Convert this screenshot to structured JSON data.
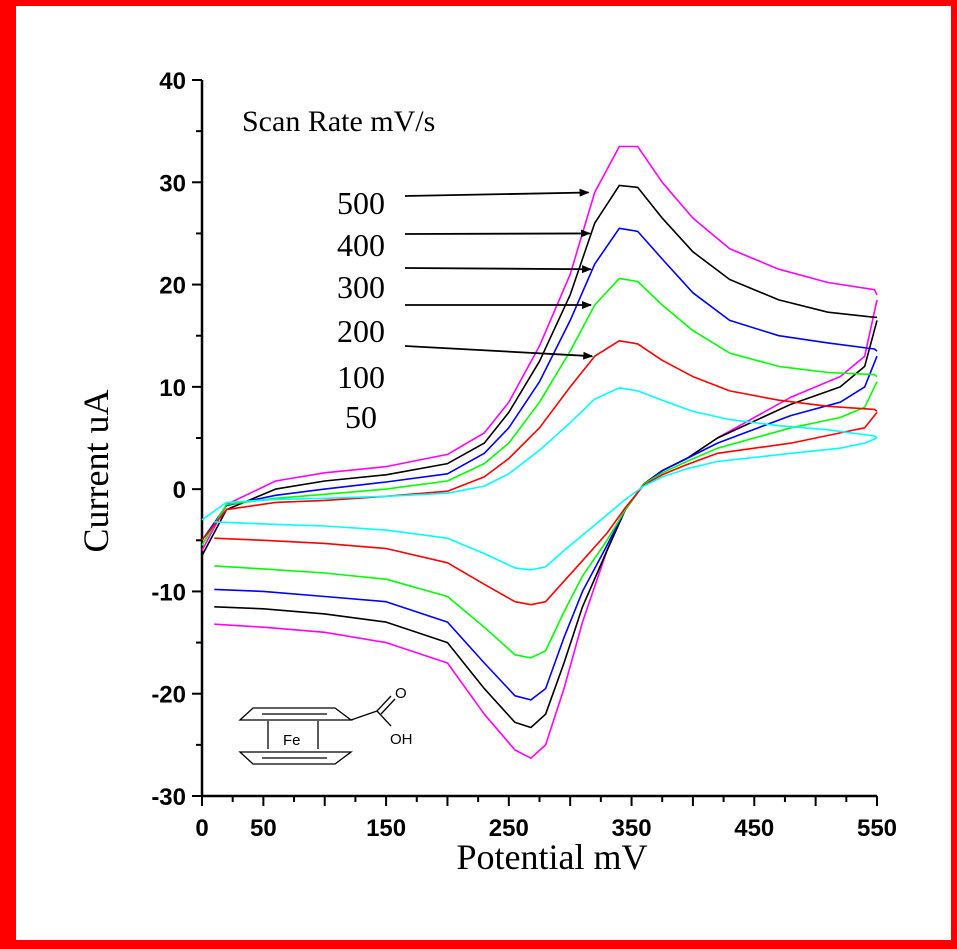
{
  "chart_data": {
    "type": "line",
    "title": "",
    "xlabel": "Potential mV",
    "ylabel": "Current uA",
    "xlim": [
      0,
      550
    ],
    "ylim": [
      -30,
      40
    ],
    "x_ticks": [
      0,
      50,
      150,
      250,
      350,
      450,
      550
    ],
    "y_ticks": [
      -30,
      -20,
      -10,
      0,
      10,
      20,
      30,
      40
    ],
    "grid": false,
    "legend_title": "Scan Rate mV/s",
    "series": [
      {
        "name": "500",
        "color": "#ff00ff",
        "forward": [
          [
            0,
            -6
          ],
          [
            20,
            -1.5
          ],
          [
            60,
            0.8
          ],
          [
            100,
            1.6
          ],
          [
            150,
            2.2
          ],
          [
            200,
            3.4
          ],
          [
            230,
            5.5
          ],
          [
            250,
            8.5
          ],
          [
            275,
            14
          ],
          [
            300,
            21
          ],
          [
            320,
            29
          ],
          [
            340,
            33.5
          ],
          [
            355,
            33.5
          ],
          [
            375,
            30
          ],
          [
            400,
            26.5
          ],
          [
            430,
            23.5
          ],
          [
            470,
            21.5
          ],
          [
            510,
            20.2
          ],
          [
            548,
            19.5
          ],
          [
            550,
            19
          ]
        ],
        "reverse": [
          [
            550,
            18.5
          ],
          [
            540,
            13
          ],
          [
            520,
            11
          ],
          [
            480,
            9
          ],
          [
            420,
            5
          ],
          [
            395,
            3
          ],
          [
            375,
            1.8
          ],
          [
            360,
            0.5
          ],
          [
            345,
            -2
          ],
          [
            330,
            -6
          ],
          [
            310,
            -13
          ],
          [
            295,
            -19.5
          ],
          [
            280,
            -25
          ],
          [
            268,
            -26.3
          ],
          [
            255,
            -25.5
          ],
          [
            230,
            -22
          ],
          [
            200,
            -17
          ],
          [
            150,
            -15
          ],
          [
            100,
            -14
          ],
          [
            50,
            -13.5
          ],
          [
            10,
            -13.2
          ]
        ]
      },
      {
        "name": "400",
        "color": "#000000",
        "forward": [
          [
            0,
            -6.5
          ],
          [
            20,
            -2
          ],
          [
            60,
            0
          ],
          [
            100,
            0.8
          ],
          [
            150,
            1.4
          ],
          [
            200,
            2.5
          ],
          [
            230,
            4.5
          ],
          [
            250,
            7.5
          ],
          [
            275,
            12.5
          ],
          [
            300,
            19
          ],
          [
            320,
            26
          ],
          [
            340,
            29.7
          ],
          [
            355,
            29.5
          ],
          [
            375,
            26.5
          ],
          [
            400,
            23.2
          ],
          [
            430,
            20.5
          ],
          [
            470,
            18.5
          ],
          [
            510,
            17.3
          ],
          [
            548,
            16.8
          ],
          [
            550,
            16.8
          ]
        ],
        "reverse": [
          [
            550,
            16.5
          ],
          [
            540,
            12
          ],
          [
            520,
            10
          ],
          [
            480,
            8.3
          ],
          [
            420,
            5
          ],
          [
            395,
            3
          ],
          [
            375,
            1.8
          ],
          [
            360,
            0.5
          ],
          [
            345,
            -2
          ],
          [
            330,
            -6
          ],
          [
            310,
            -11.5
          ],
          [
            295,
            -17
          ],
          [
            280,
            -22
          ],
          [
            268,
            -23.3
          ],
          [
            255,
            -22.8
          ],
          [
            230,
            -19.5
          ],
          [
            200,
            -15
          ],
          [
            150,
            -13
          ],
          [
            100,
            -12.2
          ],
          [
            50,
            -11.7
          ],
          [
            10,
            -11.5
          ]
        ]
      },
      {
        "name": "300",
        "color": "#0000ff",
        "forward": [
          [
            0,
            -5
          ],
          [
            20,
            -1.6
          ],
          [
            60,
            -0.6
          ],
          [
            100,
            0
          ],
          [
            150,
            0.7
          ],
          [
            200,
            1.5
          ],
          [
            230,
            3.5
          ],
          [
            250,
            6
          ],
          [
            275,
            10.5
          ],
          [
            300,
            16.5
          ],
          [
            320,
            22
          ],
          [
            340,
            25.5
          ],
          [
            355,
            25.2
          ],
          [
            375,
            22.5
          ],
          [
            400,
            19.2
          ],
          [
            430,
            16.5
          ],
          [
            470,
            15
          ],
          [
            510,
            14.3
          ],
          [
            548,
            13.7
          ],
          [
            550,
            13.5
          ]
        ],
        "reverse": [
          [
            550,
            13
          ],
          [
            540,
            10
          ],
          [
            520,
            8.5
          ],
          [
            480,
            7.2
          ],
          [
            420,
            4.5
          ],
          [
            395,
            3
          ],
          [
            375,
            1.8
          ],
          [
            360,
            0.5
          ],
          [
            345,
            -2
          ],
          [
            330,
            -5.5
          ],
          [
            310,
            -10
          ],
          [
            295,
            -14.5
          ],
          [
            280,
            -19.5
          ],
          [
            268,
            -20.6
          ],
          [
            255,
            -20.2
          ],
          [
            230,
            -17
          ],
          [
            200,
            -13
          ],
          [
            150,
            -11
          ],
          [
            100,
            -10.5
          ],
          [
            50,
            -10
          ],
          [
            10,
            -9.8
          ]
        ]
      },
      {
        "name": "200",
        "color": "#00ff00",
        "forward": [
          [
            0,
            -5.5
          ],
          [
            20,
            -1.5
          ],
          [
            60,
            -0.9
          ],
          [
            100,
            -0.5
          ],
          [
            150,
            0
          ],
          [
            200,
            0.8
          ],
          [
            230,
            2.5
          ],
          [
            250,
            4.5
          ],
          [
            275,
            8.5
          ],
          [
            300,
            13.5
          ],
          [
            320,
            18
          ],
          [
            340,
            20.6
          ],
          [
            355,
            20.3
          ],
          [
            375,
            18
          ],
          [
            400,
            15.5
          ],
          [
            430,
            13.3
          ],
          [
            470,
            12
          ],
          [
            510,
            11.4
          ],
          [
            548,
            11.2
          ],
          [
            550,
            11
          ]
        ],
        "reverse": [
          [
            550,
            10.5
          ],
          [
            540,
            8
          ],
          [
            520,
            7
          ],
          [
            480,
            6
          ],
          [
            420,
            4
          ],
          [
            395,
            2.7
          ],
          [
            375,
            1.6
          ],
          [
            360,
            0.5
          ],
          [
            345,
            -2
          ],
          [
            330,
            -5
          ],
          [
            310,
            -8.5
          ],
          [
            295,
            -12
          ],
          [
            280,
            -15.8
          ],
          [
            268,
            -16.5
          ],
          [
            255,
            -16.2
          ],
          [
            230,
            -13.5
          ],
          [
            200,
            -10.5
          ],
          [
            150,
            -8.8
          ],
          [
            100,
            -8.2
          ],
          [
            50,
            -7.8
          ],
          [
            10,
            -7.5
          ]
        ]
      },
      {
        "name": "100",
        "color": "#ff0000",
        "forward": [
          [
            0,
            -5
          ],
          [
            20,
            -2
          ],
          [
            60,
            -1.3
          ],
          [
            100,
            -1.1
          ],
          [
            150,
            -0.7
          ],
          [
            200,
            -0.2
          ],
          [
            230,
            1.2
          ],
          [
            250,
            3
          ],
          [
            275,
            6
          ],
          [
            300,
            10
          ],
          [
            320,
            13
          ],
          [
            340,
            14.5
          ],
          [
            355,
            14.2
          ],
          [
            375,
            12.6
          ],
          [
            400,
            11
          ],
          [
            430,
            9.6
          ],
          [
            470,
            8.7
          ],
          [
            510,
            8.1
          ],
          [
            548,
            7.8
          ],
          [
            550,
            7.6
          ]
        ],
        "reverse": [
          [
            550,
            7.5
          ],
          [
            540,
            6
          ],
          [
            520,
            5.5
          ],
          [
            480,
            4.5
          ],
          [
            420,
            3.5
          ],
          [
            395,
            2.4
          ],
          [
            375,
            1.4
          ],
          [
            360,
            0.4
          ],
          [
            345,
            -1.8
          ],
          [
            330,
            -4.3
          ],
          [
            310,
            -7
          ],
          [
            295,
            -9
          ],
          [
            280,
            -11
          ],
          [
            268,
            -11.3
          ],
          [
            255,
            -11
          ],
          [
            230,
            -9.3
          ],
          [
            200,
            -7.2
          ],
          [
            150,
            -5.8
          ],
          [
            100,
            -5.3
          ],
          [
            50,
            -5
          ],
          [
            10,
            -4.8
          ]
        ]
      },
      {
        "name": "50",
        "color": "#00ffff",
        "forward": [
          [
            0,
            -3
          ],
          [
            20,
            -1.3
          ],
          [
            60,
            -1
          ],
          [
            100,
            -0.9
          ],
          [
            150,
            -0.7
          ],
          [
            200,
            -0.4
          ],
          [
            230,
            0.3
          ],
          [
            250,
            1.5
          ],
          [
            275,
            3.8
          ],
          [
            300,
            6.5
          ],
          [
            320,
            8.8
          ],
          [
            340,
            9.9
          ],
          [
            355,
            9.6
          ],
          [
            375,
            8.7
          ],
          [
            400,
            7.6
          ],
          [
            430,
            6.8
          ],
          [
            470,
            6.2
          ],
          [
            510,
            5.8
          ],
          [
            548,
            5.2
          ],
          [
            550,
            5
          ]
        ],
        "reverse": [
          [
            550,
            5
          ],
          [
            540,
            4.5
          ],
          [
            520,
            4
          ],
          [
            480,
            3.5
          ],
          [
            420,
            2.7
          ],
          [
            395,
            2
          ],
          [
            375,
            1.2
          ],
          [
            360,
            0.3
          ],
          [
            345,
            -1
          ],
          [
            330,
            -2.5
          ],
          [
            310,
            -4.5
          ],
          [
            295,
            -6
          ],
          [
            280,
            -7.6
          ],
          [
            268,
            -7.9
          ],
          [
            255,
            -7.7
          ],
          [
            230,
            -6.3
          ],
          [
            200,
            -4.8
          ],
          [
            150,
            -4
          ],
          [
            100,
            -3.6
          ],
          [
            50,
            -3.4
          ],
          [
            10,
            -3.2
          ]
        ]
      }
    ],
    "annotations": [
      {
        "label": "500",
        "x": 315,
        "y": 29
      },
      {
        "label": "400",
        "x": 316,
        "y": 25
      },
      {
        "label": "300",
        "x": 317,
        "y": 21.5
      },
      {
        "label": "200",
        "x": 317,
        "y": 18
      },
      {
        "label": "100",
        "x": 318,
        "y": 13
      },
      {
        "label": "50",
        "x": null,
        "y": null
      }
    ]
  },
  "structure": {
    "fe_label": "Fe",
    "o_label": "O",
    "oh_label": "OH"
  }
}
